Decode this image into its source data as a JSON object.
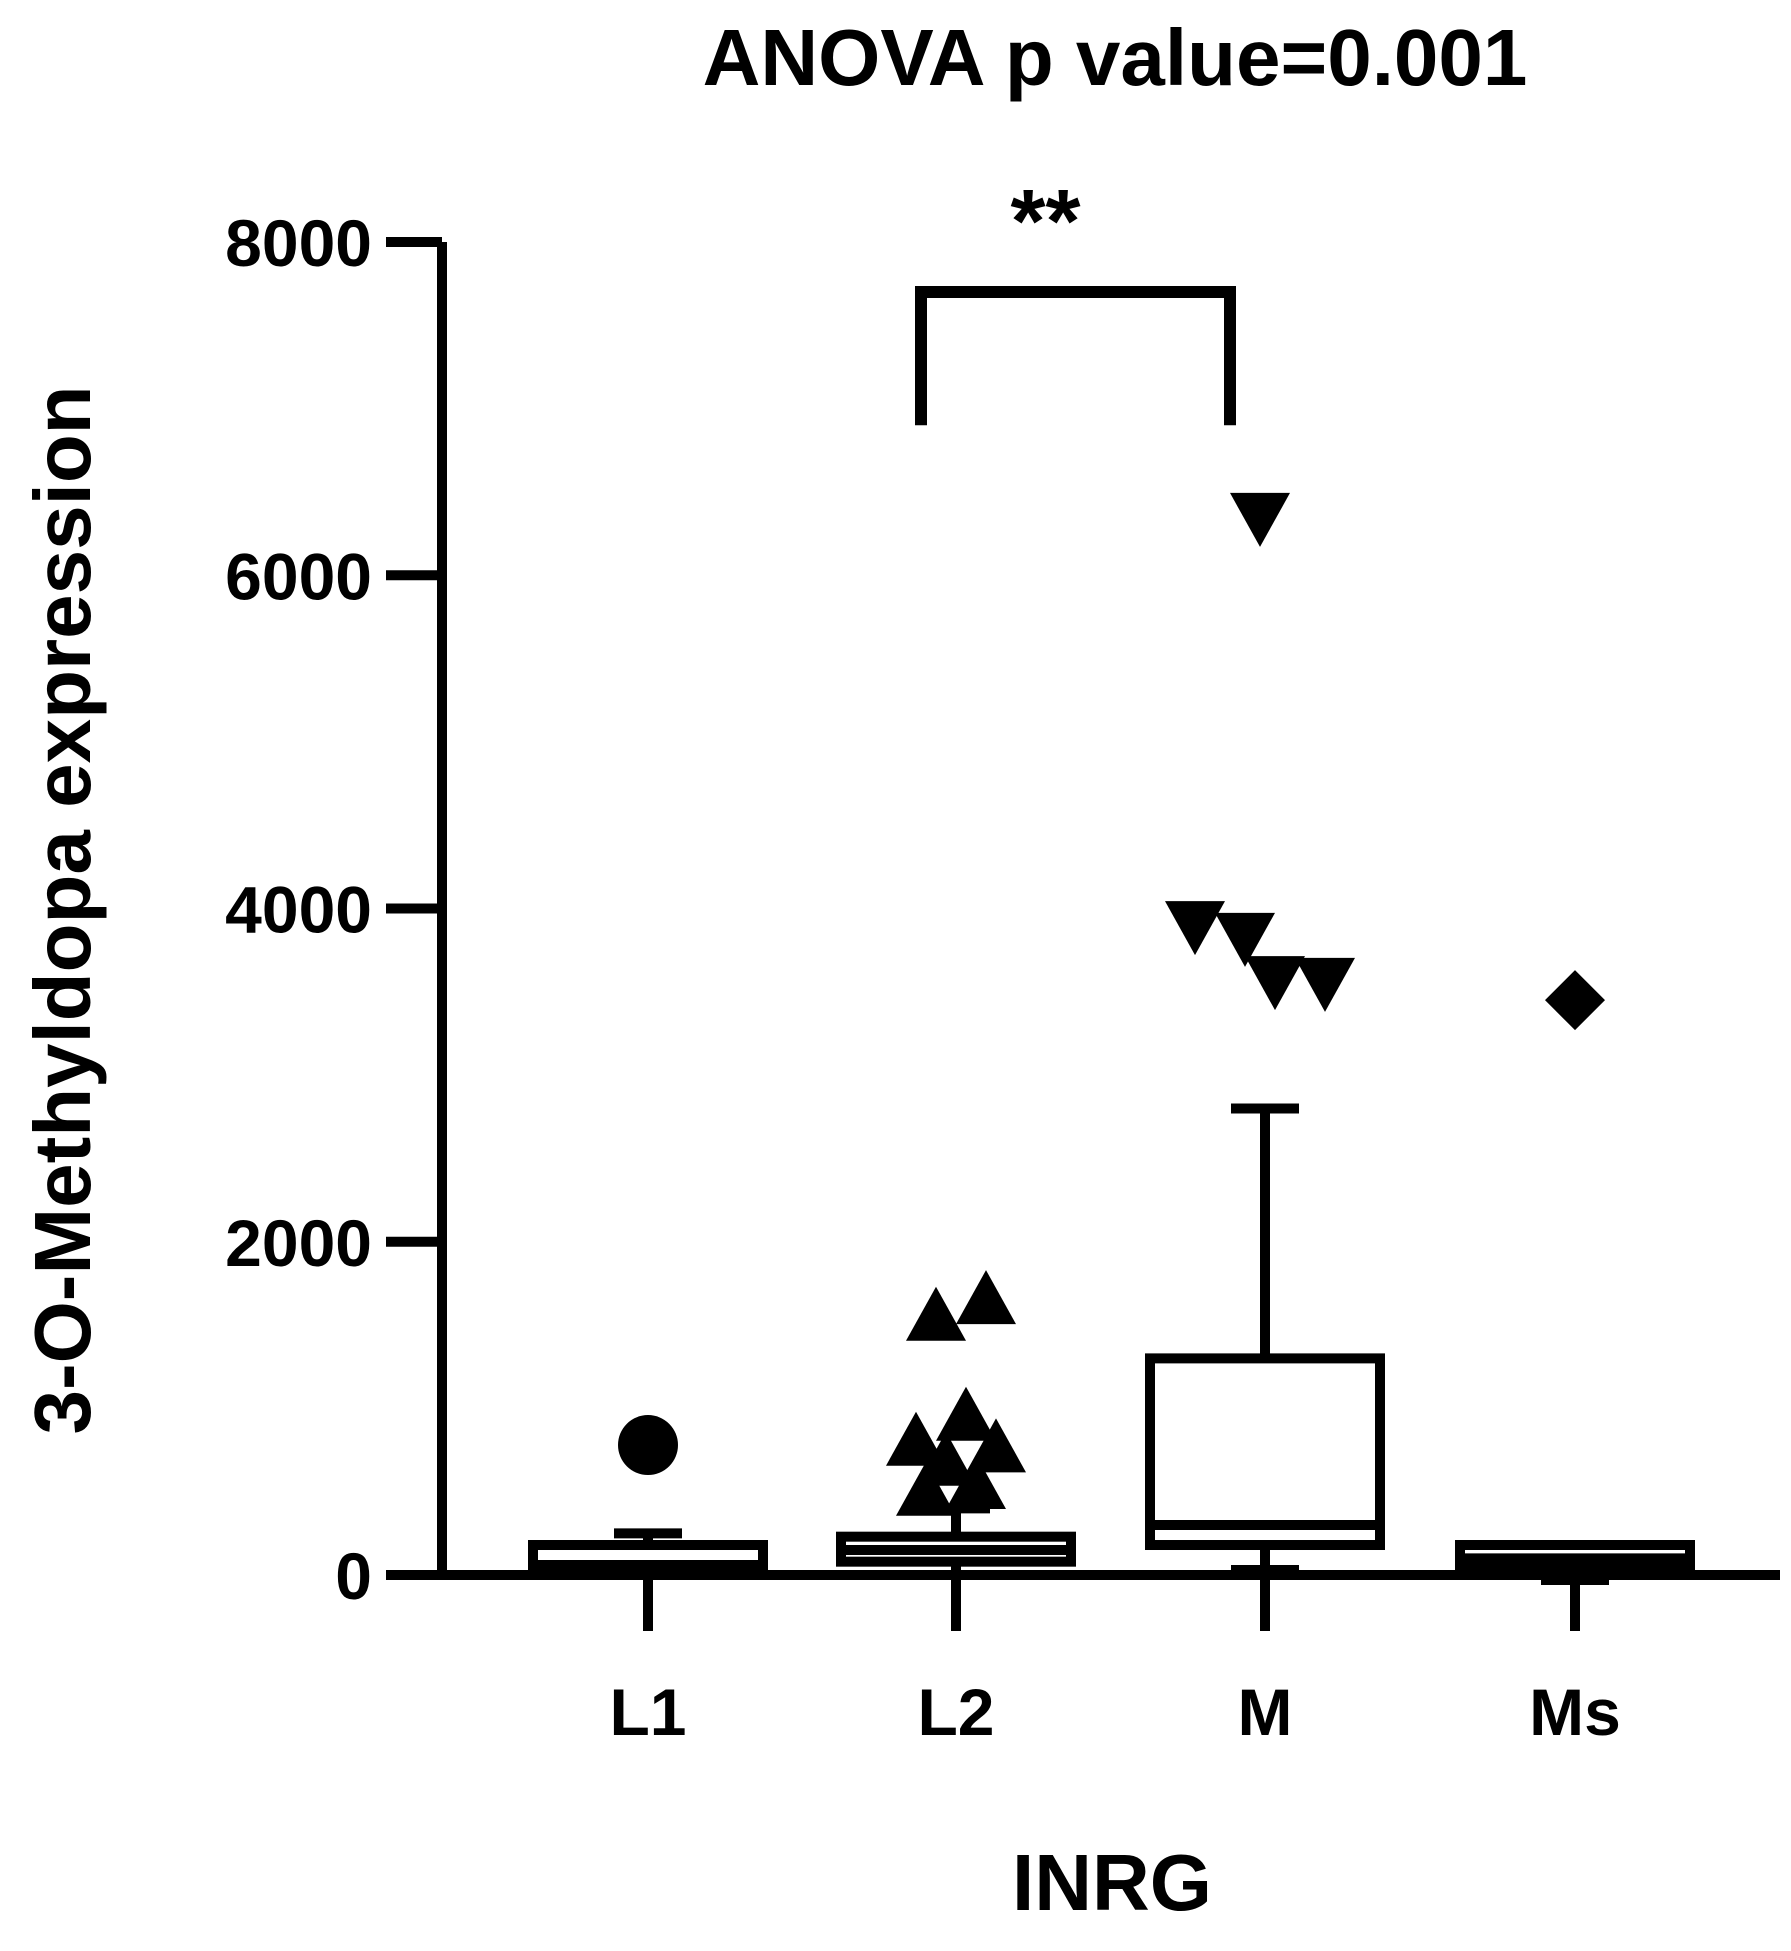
{
  "chart_data": {
    "type": "box",
    "title": "ANOVA p value=0.001",
    "xlabel": "INRG",
    "ylabel": "3-O-Methyldopa expression",
    "ylim": [
      0,
      8000
    ],
    "y_ticks": [
      0,
      2000,
      4000,
      6000,
      8000
    ],
    "y_tick_labels": [
      "0",
      "2000",
      "4000",
      "6000",
      "8000"
    ],
    "categories": [
      "L1",
      "L2",
      "M",
      "Ms"
    ],
    "colors": {
      "ink": "#000000",
      "background": "#ffffff"
    },
    "groups": [
      {
        "category": "L1",
        "marker": "circle",
        "whisker_low": 0,
        "q1": 20,
        "median": 60,
        "q3": 180,
        "whisker_high": 250,
        "outliers": [
          780
        ]
      },
      {
        "category": "L2",
        "marker": "triangle-up",
        "whisker_low": 0,
        "q1": 80,
        "median": 150,
        "q3": 230,
        "whisker_high": 400,
        "outliers": [
          1650,
          1550,
          950,
          800,
          760,
          680,
          540,
          500
        ]
      },
      {
        "category": "M",
        "marker": "triangle-down",
        "whisker_low": 30,
        "q1": 180,
        "median": 300,
        "q3": 1300,
        "whisker_high": 2800,
        "outliers": [
          6350,
          3900,
          3830,
          3570,
          3560
        ]
      },
      {
        "category": "Ms",
        "marker": "diamond",
        "whisker_low": -30,
        "q1": 50,
        "median": 100,
        "q3": 180,
        "whisker_high": 180,
        "outliers": [
          3450
        ]
      }
    ],
    "significance": [
      {
        "from": "L2",
        "to": "M",
        "label": "**",
        "y": 7700,
        "drop_to": 6900
      }
    ]
  }
}
